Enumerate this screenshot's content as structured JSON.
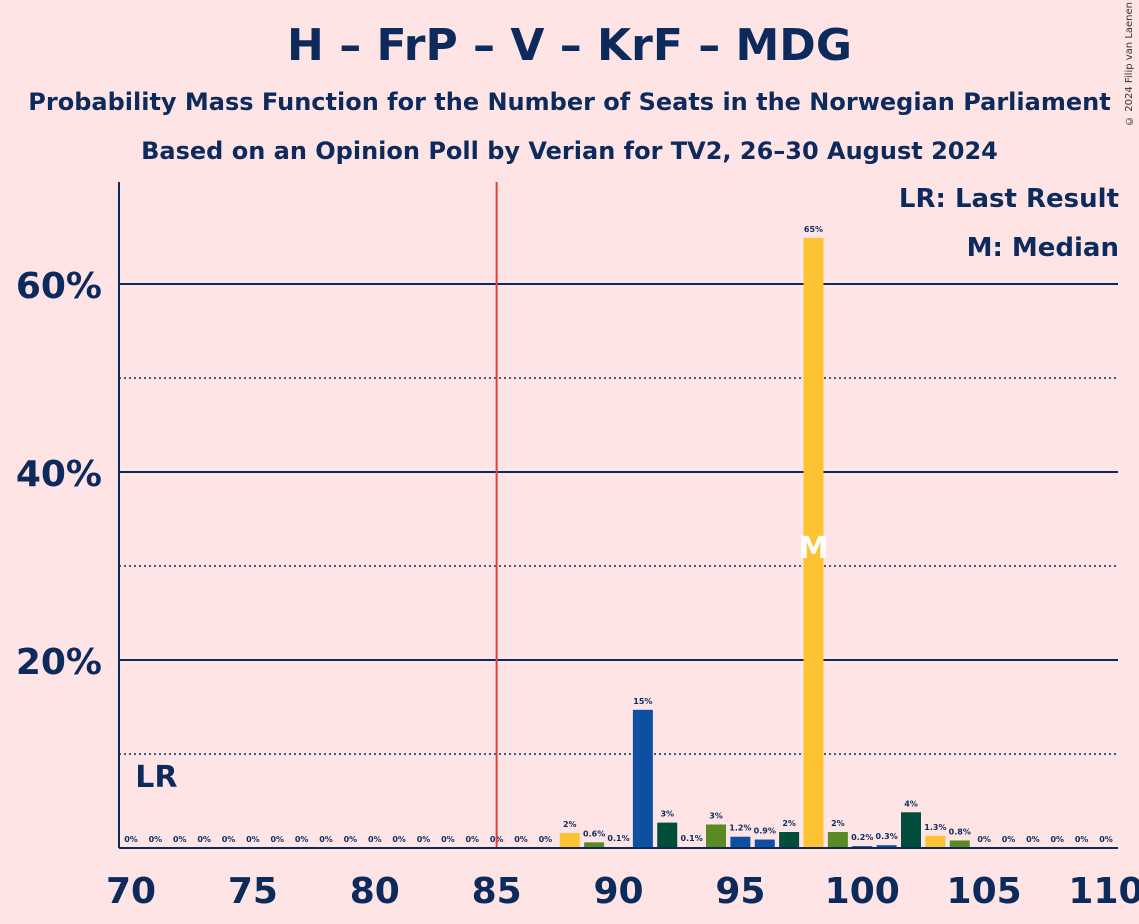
{
  "title": "H – FrP – V – KrF – MDG",
  "subtitle_1": "Probability Mass Function for the Number of Seats in the Norwegian Parliament",
  "subtitle_2": "Based on an Opinion Poll by Verian for TV2, 26–30 August 2024",
  "copyright": "© 2024 Filip van Laenen",
  "legend": {
    "last_result": "LR: Last Result",
    "median": "M: Median"
  },
  "markers": {
    "last_result_label": "LR",
    "median_label": "M",
    "last_result_seat": 71,
    "majority_seat": 85,
    "median_seat": 98
  },
  "colors": {
    "background": "#FFE4E6",
    "text": "#0D2A5C",
    "majority_line": "#E0413A",
    "H": "#0D4FA1",
    "FrP": "#004D3B",
    "V": "#5A8A23",
    "KrF": "#FDC332"
  },
  "chart_data": {
    "type": "bar",
    "xlim": [
      70,
      110
    ],
    "ylim": [
      0,
      70
    ],
    "x_ticks": [
      "70",
      "75",
      "80",
      "85",
      "90",
      "95",
      "100",
      "105",
      "110"
    ],
    "y_ticks": [
      "20%",
      "40%",
      "60%"
    ],
    "grid": "solid at 20/40/60%, dotted at 10/30/50%",
    "seats": [
      70,
      71,
      72,
      73,
      74,
      75,
      76,
      77,
      78,
      79,
      80,
      81,
      82,
      83,
      84,
      85,
      86,
      87,
      88,
      89,
      90,
      91,
      92,
      93,
      94,
      95,
      96,
      97,
      98,
      99,
      100,
      101,
      102,
      103,
      104,
      105,
      106,
      107,
      108,
      109,
      110
    ],
    "values": [
      0,
      0,
      0,
      0,
      0,
      0,
      0,
      0,
      0,
      0,
      0,
      0,
      0,
      0,
      0,
      0,
      0,
      0,
      1.6,
      0.6,
      0.1,
      14.7,
      2.7,
      0.1,
      2.5,
      1.2,
      0.9,
      1.7,
      64.9,
      1.7,
      0.2,
      0.3,
      3.8,
      1.3,
      0.8,
      0,
      0,
      0,
      0,
      0,
      0
    ],
    "labels": [
      "0%",
      "0%",
      "0%",
      "0%",
      "0%",
      "0%",
      "0%",
      "0%",
      "0%",
      "0%",
      "0%",
      "0%",
      "0%",
      "0%",
      "0%",
      "0%",
      "0%",
      "0%",
      "2%",
      "0.6%",
      "0.1%",
      "15%",
      "3%",
      "0.1%",
      "3%",
      "1.2%",
      "0.9%",
      "2%",
      "65%",
      "2%",
      "0.2%",
      "0.3%",
      "4%",
      "1.3%",
      "0.8%",
      "0%",
      "0%",
      "0%",
      "0%",
      "0%",
      "0%"
    ],
    "bar_colors": [
      "KrF",
      "V",
      "H",
      "FrP",
      "KrF",
      "V",
      "H",
      "FrP",
      "KrF",
      "V",
      "H",
      "FrP",
      "KrF",
      "V",
      "H",
      "FrP",
      "KrF",
      "V",
      "KrF",
      "V",
      "H",
      "H",
      "FrP",
      "KrF",
      "V",
      "H",
      "H",
      "FrP",
      "KrF",
      "V",
      "H",
      "H",
      "FrP",
      "KrF",
      "V",
      "H",
      "FrP",
      "KrF",
      "V",
      "H",
      "FrP"
    ]
  }
}
